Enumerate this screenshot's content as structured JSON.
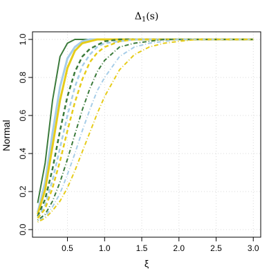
{
  "chart_data": {
    "type": "line",
    "title": "Δ1(s)",
    "title_base": "Δ",
    "title_sub": "1",
    "title_tail": "(s)",
    "xlabel": "ξ",
    "ylabel": "Normal",
    "xlim": [
      0.03,
      3.1
    ],
    "ylim": [
      -0.04,
      1.04
    ],
    "xticks": [
      0.5,
      1.0,
      1.5,
      2.0,
      2.5,
      3.0
    ],
    "xtick_labels": [
      "0.5",
      "1.0",
      "1.5",
      "2.0",
      "2.5",
      "3.0"
    ],
    "yticks": [
      0.0,
      0.2,
      0.4,
      0.6,
      0.8,
      1.0
    ],
    "ytick_labels": [
      "0.0",
      "0.2",
      "0.4",
      "0.6",
      "0.8",
      "1.0"
    ],
    "grid": true,
    "colors": {
      "dark_green": "#3a7a3a",
      "yellow": "#e6cc1a",
      "light_blue": "#a6cde8"
    },
    "x": [
      0.1,
      0.2,
      0.3,
      0.4,
      0.5,
      0.6,
      0.7,
      0.8,
      0.9,
      1.0,
      1.2,
      1.4,
      1.6,
      1.8,
      2.0,
      2.25,
      2.5,
      2.75,
      3.0
    ],
    "series": [
      {
        "color": "#3a7a3a",
        "dash": "solid",
        "width": 2,
        "values": [
          0.14,
          0.35,
          0.68,
          0.91,
          0.98,
          1.0,
          1.0,
          1.0,
          1.0,
          1.0,
          1.0,
          1.0,
          1.0,
          1.0,
          1.0,
          1.0,
          1.0,
          1.0,
          1.0
        ]
      },
      {
        "color": "#a6cde8",
        "dash": "solid",
        "width": 3,
        "values": [
          0.09,
          0.25,
          0.51,
          0.75,
          0.9,
          0.96,
          0.99,
          1.0,
          1.0,
          1.0,
          1.0,
          1.0,
          1.0,
          1.0,
          1.0,
          1.0,
          1.0,
          1.0,
          1.0
        ]
      },
      {
        "color": "#e6cc1a",
        "dash": "solid",
        "width": 3,
        "values": [
          0.08,
          0.21,
          0.44,
          0.68,
          0.85,
          0.94,
          0.98,
          0.99,
          1.0,
          1.0,
          1.0,
          1.0,
          1.0,
          1.0,
          1.0,
          1.0,
          1.0,
          1.0,
          1.0
        ]
      },
      {
        "color": "#3a7a3a",
        "dash": "dashed",
        "width": 2.5,
        "values": [
          0.07,
          0.16,
          0.32,
          0.52,
          0.7,
          0.83,
          0.91,
          0.95,
          0.97,
          0.99,
          1.0,
          1.0,
          1.0,
          1.0,
          1.0,
          1.0,
          1.0,
          1.0,
          1.0
        ]
      },
      {
        "color": "#a6cde8",
        "dash": "dashed",
        "width": 2.5,
        "values": [
          0.06,
          0.13,
          0.26,
          0.43,
          0.6,
          0.75,
          0.86,
          0.92,
          0.96,
          0.98,
          0.99,
          1.0,
          1.0,
          1.0,
          1.0,
          1.0,
          1.0,
          1.0,
          1.0
        ]
      },
      {
        "color": "#e6cc1a",
        "dash": "dashed",
        "width": 2.5,
        "values": [
          0.06,
          0.11,
          0.22,
          0.36,
          0.52,
          0.67,
          0.79,
          0.88,
          0.93,
          0.96,
          0.99,
          1.0,
          1.0,
          1.0,
          1.0,
          1.0,
          1.0,
          1.0,
          1.0
        ]
      },
      {
        "color": "#3a7a3a",
        "dash": "dotdash",
        "width": 2,
        "values": [
          0.05,
          0.08,
          0.15,
          0.25,
          0.37,
          0.5,
          0.63,
          0.74,
          0.83,
          0.89,
          0.96,
          0.98,
          0.99,
          1.0,
          1.0,
          1.0,
          1.0,
          1.0,
          1.0
        ]
      },
      {
        "color": "#a6cde8",
        "dash": "dotdash",
        "width": 2,
        "values": [
          0.04,
          0.07,
          0.12,
          0.19,
          0.29,
          0.4,
          0.52,
          0.63,
          0.73,
          0.8,
          0.91,
          0.96,
          0.98,
          0.99,
          1.0,
          1.0,
          1.0,
          1.0,
          1.0
        ]
      },
      {
        "color": "#e6cc1a",
        "dash": "dotdash",
        "width": 2,
        "values": [
          0.04,
          0.06,
          0.1,
          0.15,
          0.22,
          0.31,
          0.41,
          0.51,
          0.61,
          0.7,
          0.84,
          0.92,
          0.96,
          0.98,
          0.99,
          1.0,
          1.0,
          1.0,
          1.0
        ]
      }
    ]
  }
}
